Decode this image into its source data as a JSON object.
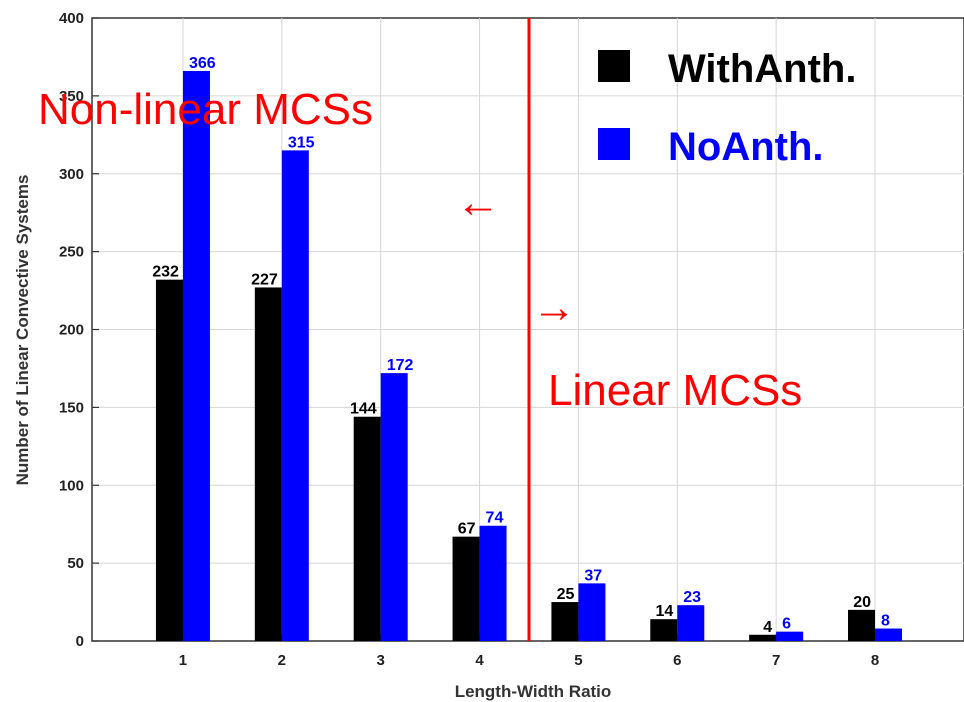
{
  "chart_data": {
    "type": "bar",
    "categories": [
      "1",
      "2",
      "3",
      "4",
      "5",
      "6",
      "7",
      "8"
    ],
    "series": [
      {
        "name": "WithAnth.",
        "values": [
          232,
          227,
          144,
          67,
          25,
          14,
          4,
          20
        ],
        "color": "#000000"
      },
      {
        "name": "NoAnth.",
        "values": [
          366,
          315,
          172,
          74,
          37,
          23,
          6,
          8
        ],
        "color": "#0000ff"
      }
    ],
    "title": "",
    "xlabel": "Length-Width Ratio",
    "ylabel": "Number of Linear Convective Systems",
    "ylim": [
      0,
      400
    ],
    "yticks": [
      0,
      50,
      100,
      150,
      200,
      250,
      300,
      350,
      400
    ],
    "grid": true,
    "legend_position": "top-right",
    "divider": {
      "x": 4.5,
      "color": "#ff0000"
    },
    "annotations": {
      "left_region": "Non-linear MCSs",
      "right_region": "Linear MCSs",
      "left_arrow": "←",
      "right_arrow": "→"
    }
  }
}
